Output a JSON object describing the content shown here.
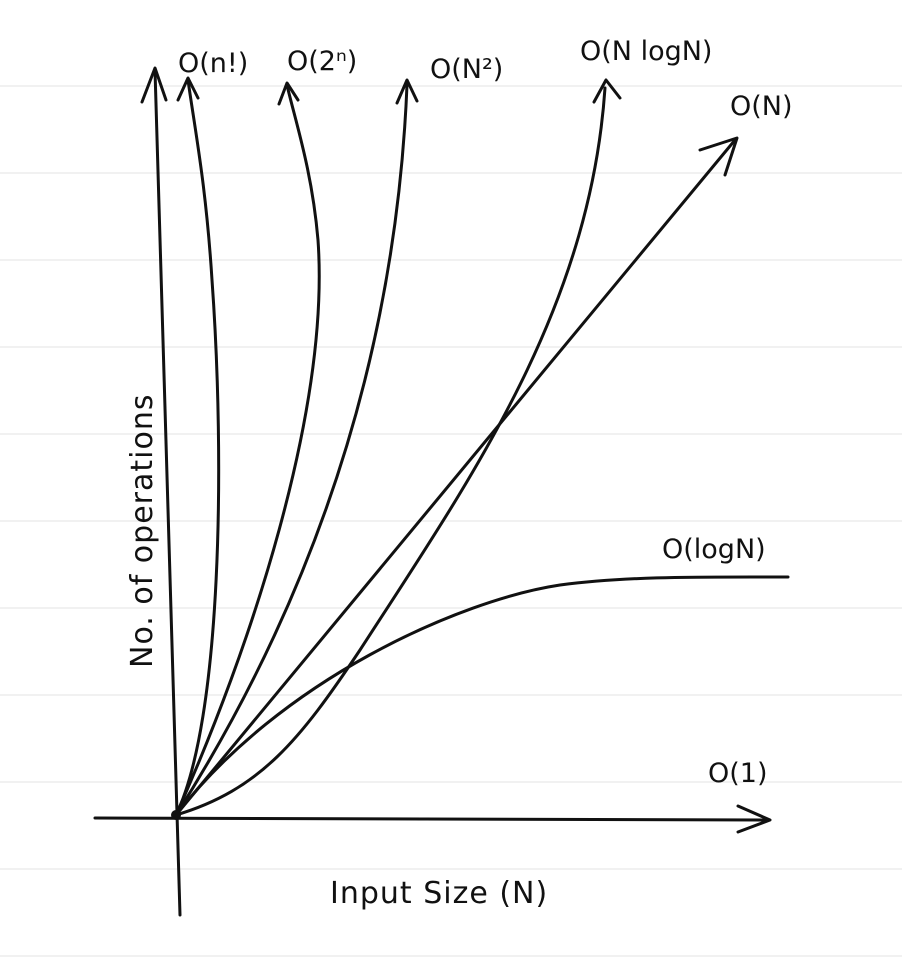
{
  "chart_data": {
    "type": "line",
    "title": "",
    "xlabel": "Input Size (N)",
    "ylabel": "No. of operations",
    "grid": false,
    "legend": "none",
    "series": [
      {
        "name": "O(n!)"
      },
      {
        "name": "O(2ⁿ)"
      },
      {
        "name": "O(N²)"
      },
      {
        "name": "O(N logN)"
      },
      {
        "name": "O(N)"
      },
      {
        "name": "O(logN)"
      },
      {
        "name": "O(1)"
      }
    ]
  }
}
